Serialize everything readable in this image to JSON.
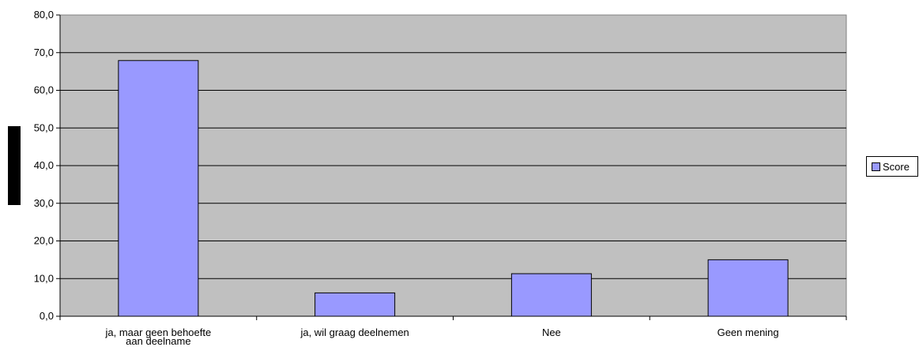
{
  "colors": {
    "plot_background": "#c0c0c0",
    "bar_fill": "#9999ff",
    "gridline": "#000000"
  },
  "chart_data": {
    "type": "bar",
    "categories": [
      [
        "ja, maar geen behoefte",
        "aan deelname"
      ],
      [
        "ja, wil graag deelnemen"
      ],
      [
        "Nee"
      ],
      [
        "Geen mening"
      ]
    ],
    "series": [
      {
        "name": "Score",
        "values": [
          67.9,
          6.2,
          11.3,
          15.0
        ]
      }
    ],
    "ylim": [
      0,
      80
    ],
    "yticks": [
      "0,0",
      "10,0",
      "20,0",
      "30,0",
      "40,0",
      "50,0",
      "60,0",
      "70,0",
      "80,0"
    ],
    "grid": true,
    "legend_position": "right"
  }
}
